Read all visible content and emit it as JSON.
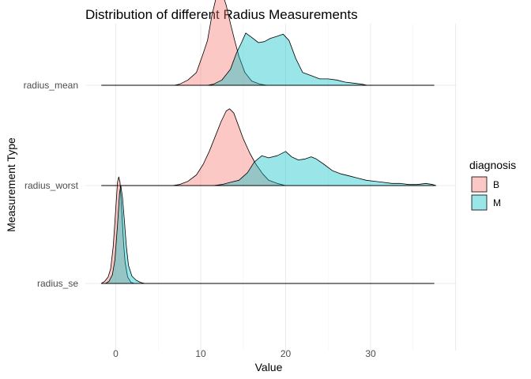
{
  "chart_data": {
    "type": "area",
    "subtype": "ridgeline-density",
    "title": "Distribution of different Radius Measurements",
    "xlabel": "Value",
    "ylabel": "Measurement Type",
    "xlim": [
      -2,
      38
    ],
    "x_ticks": [
      0,
      10,
      20,
      30
    ],
    "grid": true,
    "legend": {
      "title": "diagnosis",
      "position": "right",
      "entries": [
        {
          "label": "B",
          "color": "#F8766D"
        },
        {
          "label": "M",
          "color": "#00BFC4"
        }
      ]
    },
    "categories": [
      "radius_se",
      "radius_worst",
      "radius_mean"
    ],
    "series": [
      {
        "category": "radius_mean",
        "name": "B",
        "color": "#F8766D",
        "points": [
          [
            6.9,
            0
          ],
          [
            7.5,
            0.01
          ],
          [
            8.5,
            0.05
          ],
          [
            9.5,
            0.12
          ],
          [
            10.3,
            0.3
          ],
          [
            10.8,
            0.42
          ],
          [
            11.3,
            0.65
          ],
          [
            11.8,
            0.82
          ],
          [
            12.2,
            0.87
          ],
          [
            12.6,
            0.85
          ],
          [
            13.0,
            0.75
          ],
          [
            13.5,
            0.58
          ],
          [
            14.0,
            0.42
          ],
          [
            14.5,
            0.27
          ],
          [
            15.2,
            0.12
          ],
          [
            16.0,
            0.04
          ],
          [
            17.0,
            0.01
          ],
          [
            17.8,
            0
          ]
        ]
      },
      {
        "category": "radius_mean",
        "name": "M",
        "color": "#00BFC4",
        "points": [
          [
            10.8,
            0
          ],
          [
            11.5,
            0.01
          ],
          [
            12.5,
            0.05
          ],
          [
            13.5,
            0.15
          ],
          [
            14.2,
            0.3
          ],
          [
            14.8,
            0.4
          ],
          [
            15.3,
            0.49
          ],
          [
            16.0,
            0.45
          ],
          [
            16.8,
            0.4
          ],
          [
            17.5,
            0.41
          ],
          [
            18.2,
            0.44
          ],
          [
            19.0,
            0.46
          ],
          [
            19.7,
            0.48
          ],
          [
            20.4,
            0.42
          ],
          [
            21.2,
            0.25
          ],
          [
            22.0,
            0.12
          ],
          [
            23.0,
            0.09
          ],
          [
            24.0,
            0.06
          ],
          [
            25.0,
            0.06
          ],
          [
            26.0,
            0.05
          ],
          [
            27.0,
            0.03
          ],
          [
            28.0,
            0.02
          ],
          [
            29.0,
            0.01
          ],
          [
            29.6,
            0
          ]
        ]
      },
      {
        "category": "radius_worst",
        "name": "B",
        "color": "#F8766D",
        "points": [
          [
            6.7,
            0
          ],
          [
            7.5,
            0.01
          ],
          [
            8.5,
            0.04
          ],
          [
            9.5,
            0.1
          ],
          [
            10.3,
            0.2
          ],
          [
            11.0,
            0.32
          ],
          [
            11.8,
            0.48
          ],
          [
            12.4,
            0.6
          ],
          [
            13.0,
            0.7
          ],
          [
            13.4,
            0.72
          ],
          [
            13.9,
            0.68
          ],
          [
            14.5,
            0.55
          ],
          [
            15.0,
            0.44
          ],
          [
            15.8,
            0.3
          ],
          [
            16.5,
            0.2
          ],
          [
            17.3,
            0.11
          ],
          [
            18.0,
            0.05
          ],
          [
            19.0,
            0.02
          ],
          [
            20.0,
            0
          ]
        ]
      },
      {
        "category": "radius_worst",
        "name": "M",
        "color": "#00BFC4",
        "points": [
          [
            11.5,
            0
          ],
          [
            12.5,
            0.01
          ],
          [
            13.5,
            0.03
          ],
          [
            14.5,
            0.05
          ],
          [
            15.5,
            0.12
          ],
          [
            16.3,
            0.22
          ],
          [
            17.2,
            0.28
          ],
          [
            18.0,
            0.26
          ],
          [
            19.0,
            0.28
          ],
          [
            20.0,
            0.32
          ],
          [
            20.7,
            0.27
          ],
          [
            21.5,
            0.24
          ],
          [
            22.3,
            0.25
          ],
          [
            23.0,
            0.27
          ],
          [
            23.6,
            0.25
          ],
          [
            24.5,
            0.2
          ],
          [
            25.5,
            0.14
          ],
          [
            26.5,
            0.11
          ],
          [
            27.5,
            0.09
          ],
          [
            28.5,
            0.07
          ],
          [
            29.5,
            0.05
          ],
          [
            30.5,
            0.04
          ],
          [
            31.5,
            0.03
          ],
          [
            32.5,
            0.02
          ],
          [
            33.5,
            0.02
          ],
          [
            34.5,
            0.01
          ],
          [
            35.5,
            0.01
          ],
          [
            36.5,
            0.02
          ],
          [
            37.3,
            0.01
          ],
          [
            37.7,
            0
          ]
        ]
      },
      {
        "category": "radius_se",
        "name": "B",
        "color": "#F8766D",
        "points": [
          [
            -1.7,
            0
          ],
          [
            -1.3,
            0.02
          ],
          [
            -0.9,
            0.06
          ],
          [
            -0.6,
            0.14
          ],
          [
            -0.3,
            0.35
          ],
          [
            0.0,
            0.7
          ],
          [
            0.2,
            0.95
          ],
          [
            0.35,
            1.0
          ],
          [
            0.5,
            0.95
          ],
          [
            0.7,
            0.7
          ],
          [
            0.9,
            0.4
          ],
          [
            1.1,
            0.2
          ],
          [
            1.4,
            0.06
          ],
          [
            1.8,
            0.01
          ],
          [
            2.2,
            0
          ]
        ]
      },
      {
        "category": "radius_se",
        "name": "M",
        "color": "#00BFC4",
        "points": [
          [
            -1.2,
            0
          ],
          [
            -0.8,
            0.02
          ],
          [
            -0.4,
            0.08
          ],
          [
            -0.1,
            0.22
          ],
          [
            0.2,
            0.55
          ],
          [
            0.45,
            0.85
          ],
          [
            0.6,
            0.92
          ],
          [
            0.8,
            0.8
          ],
          [
            1.0,
            0.6
          ],
          [
            1.25,
            0.35
          ],
          [
            1.5,
            0.17
          ],
          [
            1.9,
            0.07
          ],
          [
            2.4,
            0.03
          ],
          [
            2.9,
            0.01
          ],
          [
            3.4,
            0
          ]
        ]
      }
    ]
  }
}
